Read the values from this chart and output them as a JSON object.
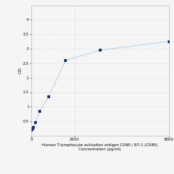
{
  "x": [
    0,
    31.25,
    62.5,
    125,
    250,
    500,
    1000,
    2000,
    4000,
    8000
  ],
  "y": [
    0.2,
    0.22,
    0.25,
    0.3,
    0.45,
    0.85,
    1.35,
    2.6,
    2.95,
    3.25
  ],
  "line_color": "#b8d4e8",
  "marker_color": "#1a3060",
  "marker_size": 3.5,
  "xlabel_line1": "2500",
  "xlabel_line2": "Human T-lymphocyte activation antigen CD80 / B7-1 (CD80)",
  "xlabel_line3": "Concentration (pg/ml)",
  "ylabel": "OD",
  "xlim": [
    0,
    8000
  ],
  "ylim": [
    0,
    4.5
  ],
  "yticks": [
    0.5,
    1.0,
    1.5,
    2.0,
    2.5,
    3.0,
    3.5,
    4.0
  ],
  "ytick_labels": [
    "0.5",
    "1",
    "1.5",
    "2",
    "2.5",
    "3",
    "3.5",
    "4"
  ],
  "xticks": [
    0,
    2500,
    8000
  ],
  "xtick_labels": [
    "0",
    "2500",
    "8000"
  ],
  "grid_color": "#d8d8d8",
  "background_color": "#f5f5f5",
  "tick_fontsize": 4.0,
  "label_fontsize": 4.0,
  "ylabel_fontsize": 4.5
}
